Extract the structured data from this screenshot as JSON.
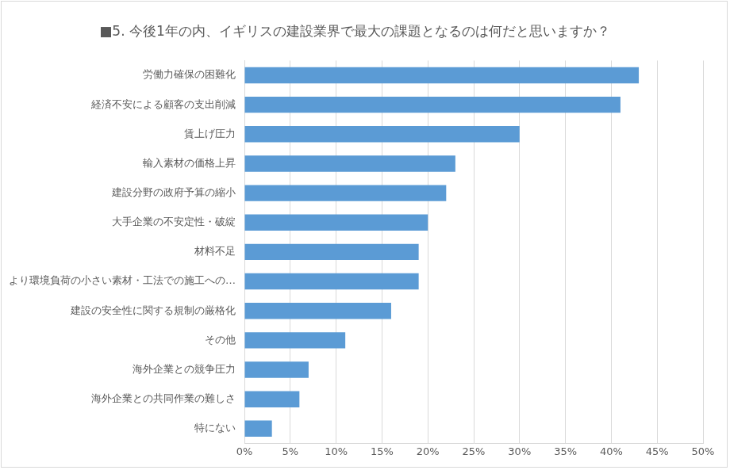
{
  "chart_data": {
    "type": "bar",
    "orientation": "horizontal",
    "title": "■5. 今後1年の内、イギリスの建設業界で最大の課題となるのは何だと思いますか？",
    "categories": [
      "労働力確保の困難化",
      "経済不安による顧客の支出削減",
      "賃上げ圧力",
      "輸入素材の価格上昇",
      "建設分野の政府予算の縮小",
      "大手企業の不安定性・破綻",
      "材料不足",
      "より環境負荷の小さい素材・工法での施工への…",
      "建設の安全性に関する規制の厳格化",
      "その他",
      "海外企業との競争圧力",
      "海外企業との共同作業の難しさ",
      "特にない"
    ],
    "values": [
      43,
      41,
      30,
      23,
      22,
      20,
      19,
      19,
      16,
      11,
      7,
      6,
      3
    ],
    "color": "#5b9bd5",
    "xlim": [
      0,
      50
    ],
    "xticks": [
      {
        "value": 0,
        "label": "0%"
      },
      {
        "value": 5,
        "label": "5%"
      },
      {
        "value": 10,
        "label": "10%"
      },
      {
        "value": 15,
        "label": "15%"
      },
      {
        "value": 20,
        "label": "20%"
      },
      {
        "value": 25,
        "label": "25%"
      },
      {
        "value": 30,
        "label": "30%"
      },
      {
        "value": 35,
        "label": "35%"
      },
      {
        "value": 40,
        "label": "40%"
      },
      {
        "value": 45,
        "label": "45%"
      },
      {
        "value": 50,
        "label": "50%"
      }
    ],
    "grid": true
  }
}
